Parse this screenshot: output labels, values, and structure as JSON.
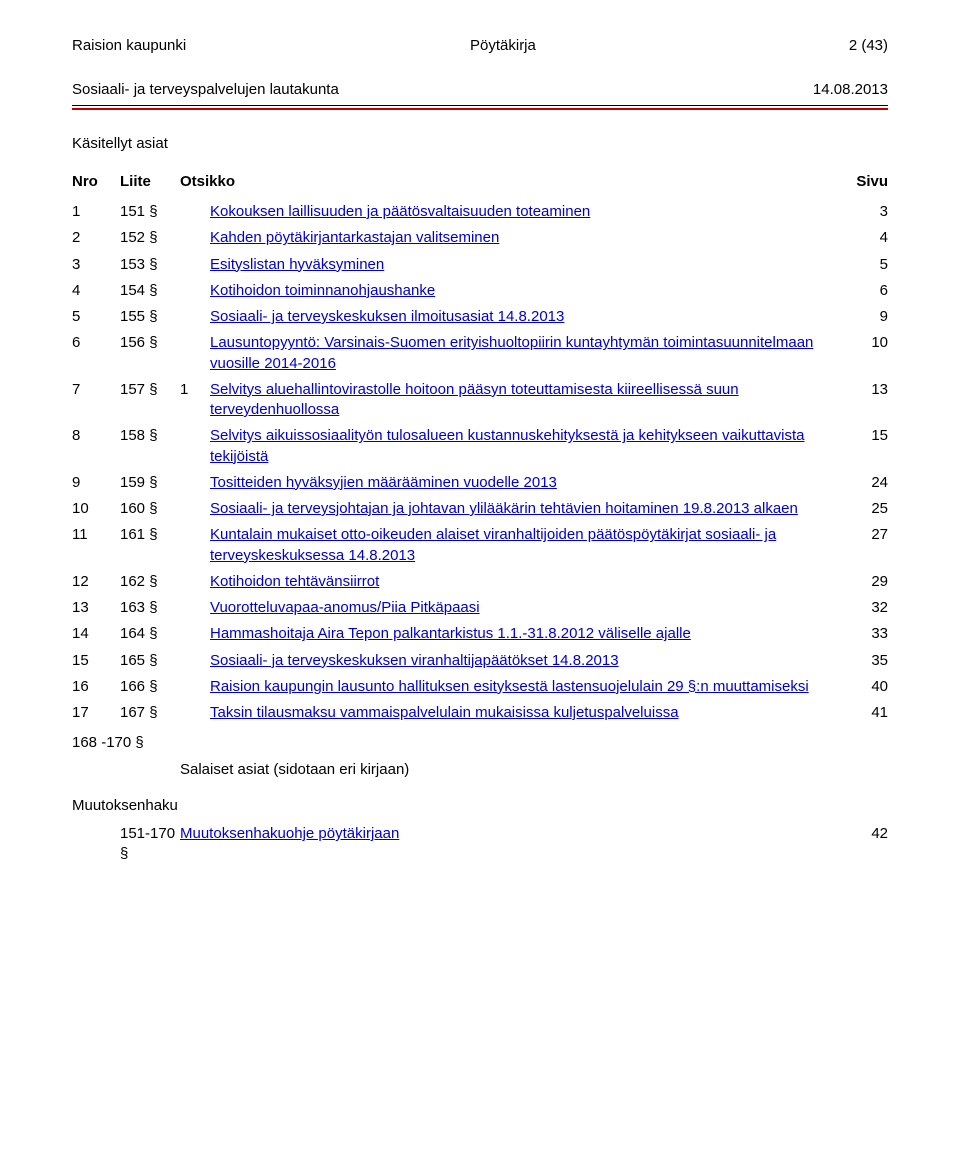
{
  "header": {
    "org": "Raision kaupunki",
    "doctype": "Pöytäkirja",
    "pageinfo": "2 (43)",
    "board": "Sosiaali- ja terveyspalvelujen lautakunta",
    "date": "14.08.2013"
  },
  "colors": {
    "rule_top": "#000000",
    "rule_red": "#c00000",
    "link": "#0000cc",
    "text": "#000000",
    "background": "#ffffff"
  },
  "section_title": "Käsitellyt asiat",
  "columns": {
    "nro": "Nro",
    "liite": "Liite",
    "otsikko": "Otsikko",
    "sivu": "Sivu"
  },
  "rows": [
    {
      "n": "1",
      "pyk": "151 §",
      "liite": "",
      "title": "Kokouksen laillisuuden ja päätösvaltaisuuden toteaminen",
      "page": "3"
    },
    {
      "n": "2",
      "pyk": "152 §",
      "liite": "",
      "title": "Kahden pöytäkirjantarkastajan valitseminen",
      "page": "4"
    },
    {
      "n": "3",
      "pyk": "153 §",
      "liite": "",
      "title": "Esityslistan hyväksyminen",
      "page": "5"
    },
    {
      "n": "4",
      "pyk": "154 §",
      "liite": "",
      "title": "Kotihoidon toiminnanohjaushanke",
      "page": "6"
    },
    {
      "n": "5",
      "pyk": "155 §",
      "liite": "",
      "title": "Sosiaali- ja terveyskeskuksen ilmoitusasiat 14.8.2013",
      "page": "9"
    },
    {
      "n": "6",
      "pyk": "156 §",
      "liite": "",
      "title": "Lausuntopyyntö: Varsinais-Suomen erityishuoltopiirin kuntayhtymän toimintasuunnitelmaan vuosille 2014-2016",
      "page": "10"
    },
    {
      "n": "7",
      "pyk": "157 §",
      "liite": "1",
      "title": "Selvitys aluehallintovirastolle hoitoon pääsyn toteuttamisesta kiireellisessä suun terveydenhuollossa",
      "page": "13"
    },
    {
      "n": "8",
      "pyk": "158 §",
      "liite": "",
      "title": "Selvitys aikuissosiaalityön tulosalueen kustannuskehityksestä ja kehitykseen vaikuttavista tekijöistä",
      "page": "15"
    },
    {
      "n": "9",
      "pyk": "159 §",
      "liite": "",
      "title": "Tositteiden hyväksyjien määrääminen vuodelle 2013",
      "page": "24"
    },
    {
      "n": "10",
      "pyk": "160 §",
      "liite": "",
      "title": "Sosiaali- ja terveysjohtajan ja johtavan ylilääkärin tehtävien hoitaminen 19.8.2013 alkaen",
      "page": "25"
    },
    {
      "n": "11",
      "pyk": "161 §",
      "liite": "",
      "title": "Kuntalain mukaiset otto-oikeuden alaiset viranhaltijoiden päätöspöytäkirjat sosiaali- ja terveyskeskuksessa 14.8.2013",
      "page": "27"
    },
    {
      "n": "12",
      "pyk": "162 §",
      "liite": "",
      "title": "Kotihoidon tehtävänsiirrot",
      "page": "29"
    },
    {
      "n": "13",
      "pyk": "163 §",
      "liite": "",
      "title": "Vuorotteluvapaa-anomus/Piia Pitkäpaasi",
      "page": "32"
    },
    {
      "n": "14",
      "pyk": "164 §",
      "liite": "",
      "title": "Hammashoitaja Aira Tepon palkantarkistus 1.1.-31.8.2012 väliselle ajalle",
      "page": "33"
    },
    {
      "n": "15",
      "pyk": "165 §",
      "liite": "",
      "title": "Sosiaali- ja terveyskeskuksen viranhaltijapäätökset 14.8.2013",
      "page": "35"
    },
    {
      "n": "16",
      "pyk": "166 §",
      "liite": "",
      "title": "Raision kaupungin lausunto hallituksen esityksestä lastensuojelulain 29 §:n muuttamiseksi",
      "page": "40"
    },
    {
      "n": "17",
      "pyk": "167 §",
      "liite": "",
      "title": "Taksin tilausmaksu vammaispalvelulain mukaisissa kuljetuspalveluissa",
      "page": "41"
    }
  ],
  "secret_block": {
    "range": "168 -170 §",
    "text": "Salaiset asiat (sidotaan eri kirjaan)"
  },
  "muutoksenhaku": {
    "title": "Muutoksenhaku",
    "range": "151-170 §",
    "link": "Muutoksenhakuohje pöytäkirjaan",
    "page": "42"
  }
}
